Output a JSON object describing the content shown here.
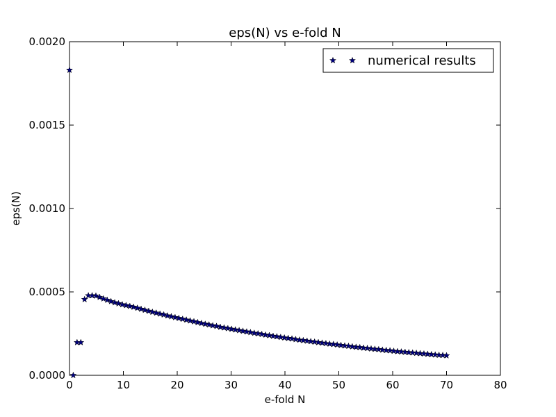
{
  "chart_data": {
    "type": "scatter",
    "title": "eps(N) vs e-fold N",
    "xlabel": "e-fold N",
    "ylabel": "eps(N)",
    "xlim": [
      0,
      80
    ],
    "ylim": [
      0,
      0.002
    ],
    "xticks": [
      "0",
      "10",
      "20",
      "30",
      "40",
      "50",
      "60",
      "70",
      "80"
    ],
    "yticks": [
      "0.0000",
      "0.0005",
      "0.0010",
      "0.0015",
      "0.0020"
    ],
    "grid": false,
    "legend_position": "top-right",
    "marker": "star",
    "marker_color": "#000080",
    "series": [
      {
        "name": "numerical results",
        "x": [
          0.0,
          0.7,
          1.4,
          2.1,
          2.8,
          3.5,
          4.2,
          4.9,
          5.6,
          6.3,
          7.0,
          7.7,
          8.4,
          9.1,
          9.8,
          10.5,
          11.2,
          11.9,
          12.6,
          13.3,
          14.0,
          14.7,
          15.4,
          16.1,
          16.8,
          17.5,
          18.2,
          18.9,
          19.6,
          20.3,
          21.0,
          21.7,
          22.4,
          23.1,
          23.8,
          24.5,
          25.2,
          25.9,
          26.6,
          27.3,
          28.0,
          28.7,
          29.4,
          30.1,
          30.8,
          31.5,
          32.2,
          32.9,
          33.6,
          34.3,
          35.0,
          35.7,
          36.4,
          37.1,
          37.8,
          38.5,
          39.2,
          39.9,
          40.6,
          41.3,
          42.0,
          42.7,
          43.4,
          44.1,
          44.8,
          45.5,
          46.2,
          46.9,
          47.6,
          48.3,
          49.0,
          49.7,
          50.4,
          51.1,
          51.8,
          52.5,
          53.2,
          53.9,
          54.6,
          55.3,
          56.0,
          56.7,
          57.4,
          58.1,
          58.8,
          59.5,
          60.2,
          60.9,
          61.6,
          62.3,
          63.0,
          63.7,
          64.4,
          65.1,
          65.8,
          66.5,
          67.2,
          67.9,
          68.6,
          69.3,
          70.0
        ],
        "y": [
          0.00183,
          0.0,
          0.000197,
          0.000197,
          0.000455,
          0.000478,
          0.000478,
          0.000476,
          0.000468,
          0.000459,
          0.000451,
          0.000443,
          0.000436,
          0.00043,
          0.000424,
          0.000419,
          0.000414,
          0.000409,
          0.000403,
          0.000397,
          0.000391,
          0.000385,
          0.000379,
          0.000374,
          0.000368,
          0.000363,
          0.000357,
          0.000352,
          0.000347,
          0.000342,
          0.000337,
          0.000332,
          0.000327,
          0.000322,
          0.000317,
          0.000312,
          0.000307,
          0.000303,
          0.000298,
          0.000294,
          0.000289,
          0.000285,
          0.000281,
          0.000277,
          0.000273,
          0.000269,
          0.000265,
          0.000261,
          0.000257,
          0.000253,
          0.00025,
          0.000246,
          0.000242,
          0.000239,
          0.000235,
          0.000232,
          0.000228,
          0.000225,
          0.000222,
          0.000219,
          0.000215,
          0.000212,
          0.000209,
          0.000206,
          0.000203,
          0.0002,
          0.000197,
          0.000194,
          0.000191,
          0.000188,
          0.000186,
          0.000183,
          0.00018,
          0.000177,
          0.000175,
          0.000172,
          0.000169,
          0.000167,
          0.000164,
          0.000162,
          0.000159,
          0.000157,
          0.000155,
          0.000152,
          0.00015,
          0.000148,
          0.000145,
          0.000143,
          0.000141,
          0.000139,
          0.000137,
          0.000135,
          0.000133,
          0.000131,
          0.000129,
          0.000127,
          0.000125,
          0.000123,
          0.000121,
          0.00012,
          0.000118
        ]
      }
    ]
  }
}
